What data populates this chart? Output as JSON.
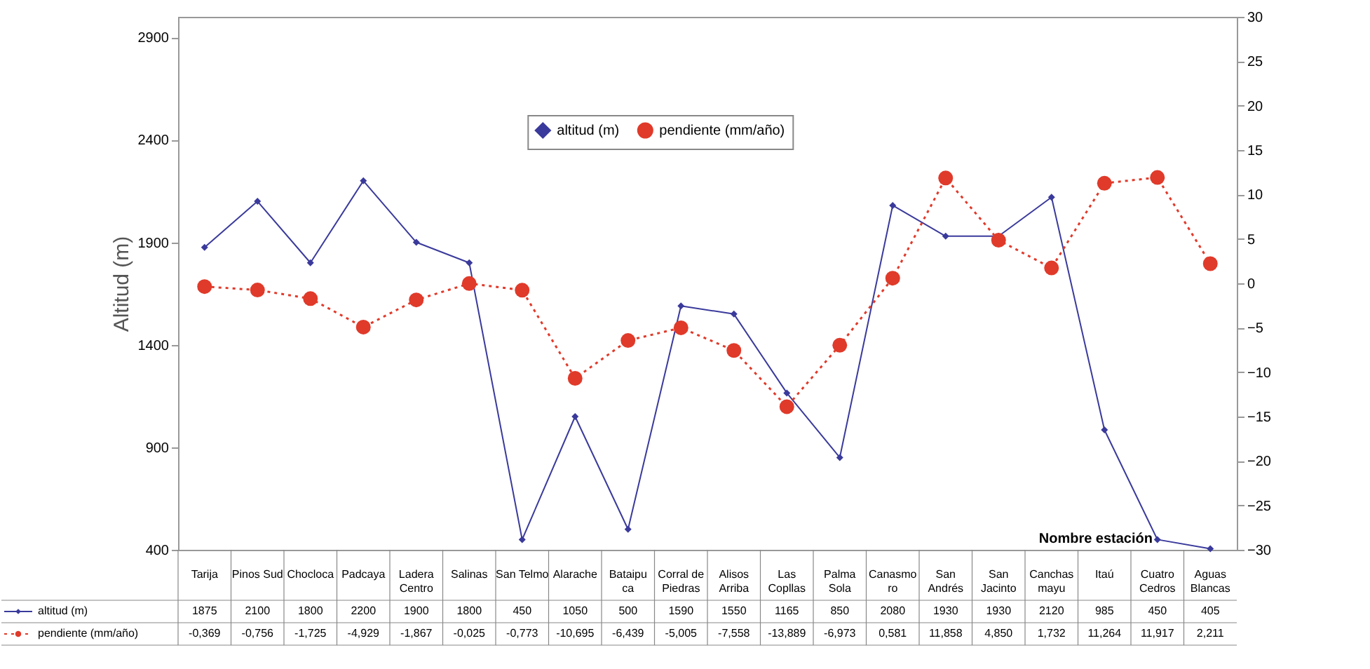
{
  "chart_data": {
    "type": "line",
    "ylabel": "Altitud (m)",
    "xlabel": "Nombre estación",
    "categories": [
      "Tarija",
      "Pinos Sud",
      "Chocloca",
      "Padcaya",
      "Ladera Centro",
      "Salinas",
      "San Telmo",
      "Alarache",
      "Bataipuca",
      "Corral de Piedras",
      "Alisos Arriba",
      "Las Copllas",
      "Palma Sola",
      "Canasmoro",
      "San Andrés",
      "San Jacinto",
      "Canchas mayu",
      "Itaú",
      "Cuatro Cedros",
      "Aguas Blancas"
    ],
    "series": [
      {
        "name": "altitud (m)",
        "color": "#3a3a9c",
        "marker": "diamond",
        "line_style": "solid",
        "values": [
          1875,
          2100,
          1800,
          2200,
          1900,
          1800,
          450,
          1050,
          500,
          1590,
          1550,
          1165,
          850,
          2080,
          1930,
          1930,
          2120,
          985,
          450,
          405
        ],
        "value_labels": [
          "1875",
          "2100",
          "1800",
          "2200",
          "1900",
          "1800",
          "450",
          "1050",
          "500",
          "1590",
          "1550",
          "1165",
          "850",
          "2080",
          "1930",
          "1930",
          "2120",
          "985",
          "450",
          "405"
        ]
      },
      {
        "name": "pendiente (mm/año)",
        "color": "#e03a2a",
        "marker": "circle",
        "line_style": "dotted",
        "axis": "y2",
        "values": [
          -0.369,
          -0.756,
          -1.725,
          -4.929,
          -1.867,
          -0.025,
          -0.773,
          -10.695,
          -6.439,
          -5.005,
          -7.558,
          -13.889,
          -6.973,
          0.581,
          11.858,
          4.85,
          1.732,
          11.264,
          11.917,
          2.211
        ],
        "value_labels": [
          "-0,369",
          "-0,756",
          "-1,725",
          "-4,929",
          "-1,867",
          "-0,025",
          "-0,773",
          "-10,695",
          "-6,439",
          "-5,005",
          "-7,558",
          "-13,889",
          "-6,973",
          "0,581",
          "11,858",
          "4,850",
          "1,732",
          "11,264",
          "11,917",
          "2,211"
        ]
      }
    ],
    "ylim": [
      400,
      3000
    ],
    "yticks": [
      400,
      900,
      1400,
      1900,
      2400,
      2900
    ],
    "y2lim": [
      -30,
      30
    ],
    "y2ticks": [
      -30,
      -25,
      -20,
      -15,
      -10,
      -5,
      0,
      5,
      10,
      15,
      20,
      25,
      30
    ],
    "grid": false,
    "legend": "top"
  }
}
